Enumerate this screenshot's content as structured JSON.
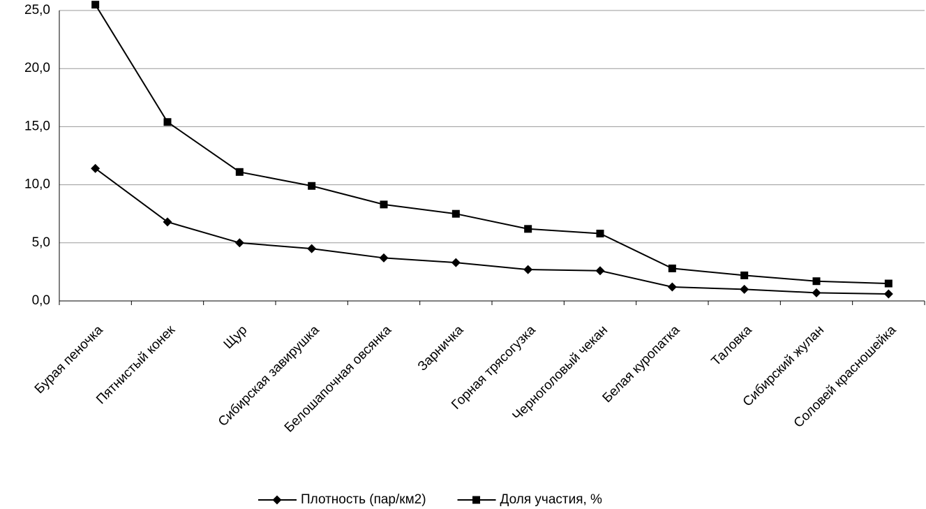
{
  "chart_data": {
    "type": "line",
    "categories": [
      "Бурая пеночка",
      "Пятнистый конек",
      "Щур",
      "Сибирская завирушка",
      "Белошапочная овсянка",
      "Зарничка",
      "Горная трясогузка",
      "Черноголовый чекан",
      "Белая куропатка",
      "Таловка",
      "Сибирский жулан",
      "Соловей красношейка"
    ],
    "series": [
      {
        "name": "Плотность (пар/км2)",
        "color": "#000000",
        "marker": "diamond",
        "values": [
          11.4,
          6.8,
          5.0,
          4.5,
          3.7,
          3.3,
          2.7,
          2.6,
          1.2,
          1.0,
          0.7,
          0.6
        ]
      },
      {
        "name": "Доля участия, %",
        "color": "#000000",
        "marker": "square",
        "values": [
          25.5,
          15.4,
          11.1,
          9.9,
          8.3,
          7.5,
          6.2,
          5.8,
          2.8,
          2.2,
          1.7,
          1.5
        ]
      }
    ],
    "ylim": [
      0,
      25
    ],
    "yticks": [
      {
        "value": 0,
        "label": "0,0"
      },
      {
        "value": 5,
        "label": "5,0"
      },
      {
        "value": 10,
        "label": "10,0"
      },
      {
        "value": 15,
        "label": "15,0"
      },
      {
        "value": 20,
        "label": "20,0"
      },
      {
        "value": 25,
        "label": "25,0"
      }
    ],
    "grid": true,
    "legend": "bottom"
  }
}
